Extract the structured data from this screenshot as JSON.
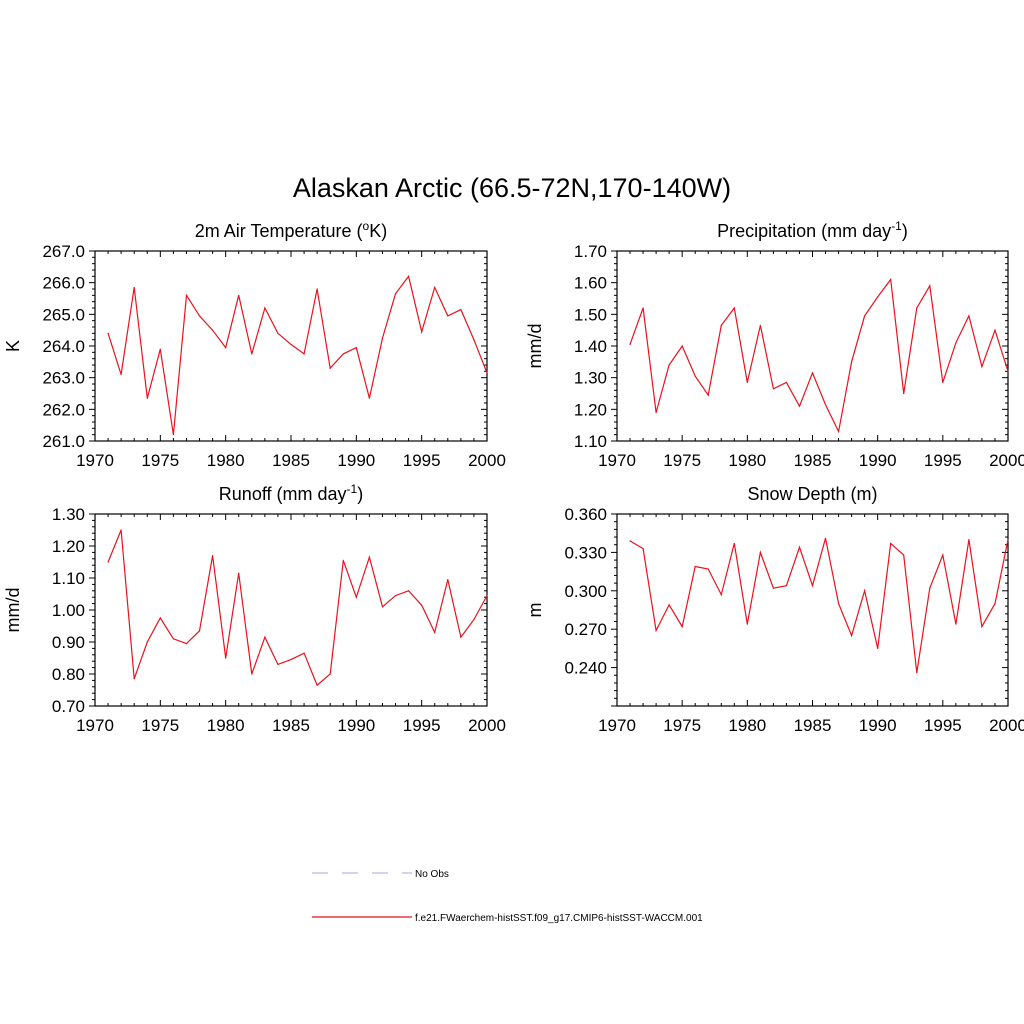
{
  "title": "Alaskan Arctic (66.5-72N,170-140W)",
  "series_color": "#e8131c",
  "obs_color": "#b7b7ef",
  "legend": {
    "obs_label": "No Obs",
    "model_label": "f.e21.FWaerchem-histSST.f09_g17.CMIP6-histSST-WACCM.001"
  },
  "chart_data": [
    {
      "type": "line",
      "title": "2m Air Temperature (",
      "title_sup_pre": "o",
      "title_post": "K)",
      "ylabel": "K",
      "xlim": [
        1970,
        2000
      ],
      "ylim": [
        261.0,
        267.0
      ],
      "x_ticks": [
        "1970",
        "1975",
        "1980",
        "1985",
        "1990",
        "1995",
        "2000"
      ],
      "y_ticks": [
        "261.0",
        "262.0",
        "263.0",
        "264.0",
        "265.0",
        "266.0",
        "267.0"
      ],
      "x": [
        1971,
        1972,
        1973,
        1974,
        1975,
        1976,
        1977,
        1978,
        1979,
        1980,
        1981,
        1982,
        1983,
        1984,
        1985,
        1986,
        1987,
        1988,
        1989,
        1990,
        1991,
        1992,
        1993,
        1994,
        1995,
        1996,
        1997,
        1998,
        1999,
        2000
      ],
      "series": [
        {
          "values": [
            264.4,
            263.1,
            265.85,
            262.35,
            263.9,
            261.2,
            265.6,
            264.95,
            264.5,
            263.95,
            265.6,
            263.75,
            265.2,
            264.4,
            264.05,
            263.75,
            265.8,
            263.3,
            263.75,
            263.95,
            262.35,
            264.25,
            265.65,
            266.2,
            264.45,
            265.85,
            264.95,
            265.15,
            264.2,
            263.15
          ]
        }
      ]
    },
    {
      "type": "line",
      "title": "Precipitation (mm day",
      "title_sup_post": "-1",
      "title_post": ")",
      "ylabel": "mm/d",
      "xlim": [
        1970,
        2000
      ],
      "ylim": [
        1.1,
        1.7
      ],
      "x_ticks": [
        "1970",
        "1975",
        "1980",
        "1985",
        "1990",
        "1995",
        "2000"
      ],
      "y_ticks": [
        "1.10",
        "1.20",
        "1.30",
        "1.40",
        "1.50",
        "1.60",
        "1.70"
      ],
      "x": [
        1971,
        1972,
        1973,
        1974,
        1975,
        1976,
        1977,
        1978,
        1979,
        1980,
        1981,
        1982,
        1983,
        1984,
        1985,
        1986,
        1987,
        1988,
        1989,
        1990,
        1991,
        1992,
        1993,
        1994,
        1995,
        1996,
        1997,
        1998,
        1999,
        2000
      ],
      "series": [
        {
          "values": [
            1.405,
            1.52,
            1.19,
            1.34,
            1.4,
            1.305,
            1.245,
            1.465,
            1.52,
            1.285,
            1.465,
            1.265,
            1.285,
            1.21,
            1.315,
            1.215,
            1.13,
            1.35,
            1.495,
            1.555,
            1.61,
            1.25,
            1.52,
            1.59,
            1.285,
            1.41,
            1.495,
            1.335,
            1.45,
            1.32
          ]
        }
      ]
    },
    {
      "type": "line",
      "title": "Runoff (mm day",
      "title_sup_post": "-1",
      "title_post": ")",
      "ylabel": "mm/d",
      "xlim": [
        1970,
        2000
      ],
      "ylim": [
        0.7,
        1.3
      ],
      "x_ticks": [
        "1970",
        "1975",
        "1980",
        "1985",
        "1990",
        "1995",
        "2000"
      ],
      "y_ticks": [
        "0.70",
        "0.80",
        "0.90",
        "1.00",
        "1.10",
        "1.20",
        "1.30"
      ],
      "x": [
        1971,
        1972,
        1973,
        1974,
        1975,
        1976,
        1977,
        1978,
        1979,
        1980,
        1981,
        1982,
        1983,
        1984,
        1985,
        1986,
        1987,
        1988,
        1989,
        1990,
        1991,
        1992,
        1993,
        1994,
        1995,
        1996,
        1997,
        1998,
        1999,
        2000
      ],
      "series": [
        {
          "values": [
            1.15,
            1.25,
            0.785,
            0.9,
            0.975,
            0.91,
            0.895,
            0.935,
            1.17,
            0.85,
            1.115,
            0.8,
            0.915,
            0.83,
            0.845,
            0.865,
            0.765,
            0.8,
            1.155,
            1.04,
            1.165,
            1.01,
            1.045,
            1.06,
            1.015,
            0.93,
            1.095,
            0.915,
            0.97,
            1.045
          ]
        }
      ]
    },
    {
      "type": "line",
      "title": "Snow Depth (m)",
      "ylabel": "m",
      "xlim": [
        1970,
        2000
      ],
      "ylim": [
        0.21,
        0.36
      ],
      "x_ticks": [
        "1970",
        "1975",
        "1980",
        "1985",
        "1990",
        "1995",
        "2000"
      ],
      "y_ticks": [
        "0.240",
        "0.270",
        "0.300",
        "0.330",
        "0.360"
      ],
      "x": [
        1971,
        1972,
        1973,
        1974,
        1975,
        1976,
        1977,
        1978,
        1979,
        1980,
        1981,
        1982,
        1983,
        1984,
        1985,
        1986,
        1987,
        1988,
        1989,
        1990,
        1991,
        1992,
        1993,
        1994,
        1995,
        1996,
        1997,
        1998,
        1999,
        2000
      ],
      "series": [
        {
          "values": [
            0.339,
            0.333,
            0.269,
            0.289,
            0.272,
            0.319,
            0.317,
            0.297,
            0.337,
            0.274,
            0.33,
            0.302,
            0.304,
            0.334,
            0.304,
            0.341,
            0.29,
            0.265,
            0.3,
            0.255,
            0.337,
            0.328,
            0.236,
            0.302,
            0.328,
            0.274,
            0.34,
            0.272,
            0.29,
            0.34
          ]
        }
      ]
    }
  ]
}
